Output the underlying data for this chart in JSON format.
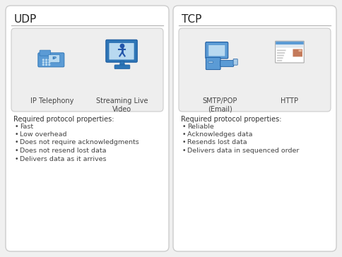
{
  "bg_color": "#f0f0f0",
  "panel_bg": "#ffffff",
  "panel_border": "#cccccc",
  "icon_box_bg": "#eeeeee",
  "icon_box_border": "#cccccc",
  "separator_color": "#b0b0b0",
  "title_color": "#222222",
  "text_color": "#444444",
  "header_color": "#333333",
  "udp_title": "UDP",
  "tcp_title": "TCP",
  "udp_icons": [
    "IP Telephony",
    "Streaming Live\nVideo"
  ],
  "tcp_icons": [
    "SMTP/POP\n(Email)",
    "HTTP"
  ],
  "udp_props_header": "Required protocol properties:",
  "udp_props": [
    "Fast",
    "Low overhead",
    "Does not require acknowledgments",
    "Does not resend lost data",
    "Delivers data as it arrives"
  ],
  "tcp_props_header": "Required protocol properties:",
  "tcp_props": [
    "Reliable",
    "Acknowledges data",
    "Resends lost data",
    "Delivers data in sequenced order"
  ],
  "phone_body": "#5b9bd5",
  "phone_screen": "#b8d9f0",
  "phone_dark": "#2e75b6",
  "monitor_frame": "#2e75b6",
  "monitor_screen": "#b8d9f0",
  "monitor_stand": "#2e75b6",
  "computer_body": "#5b9bd5",
  "computer_screen_bg": "#b8d9f0",
  "webpage_bg": "#ffffff",
  "webpage_bar": "#c8e0f4",
  "webpage_line": "#cccccc",
  "webpage_img": "#c0775a"
}
